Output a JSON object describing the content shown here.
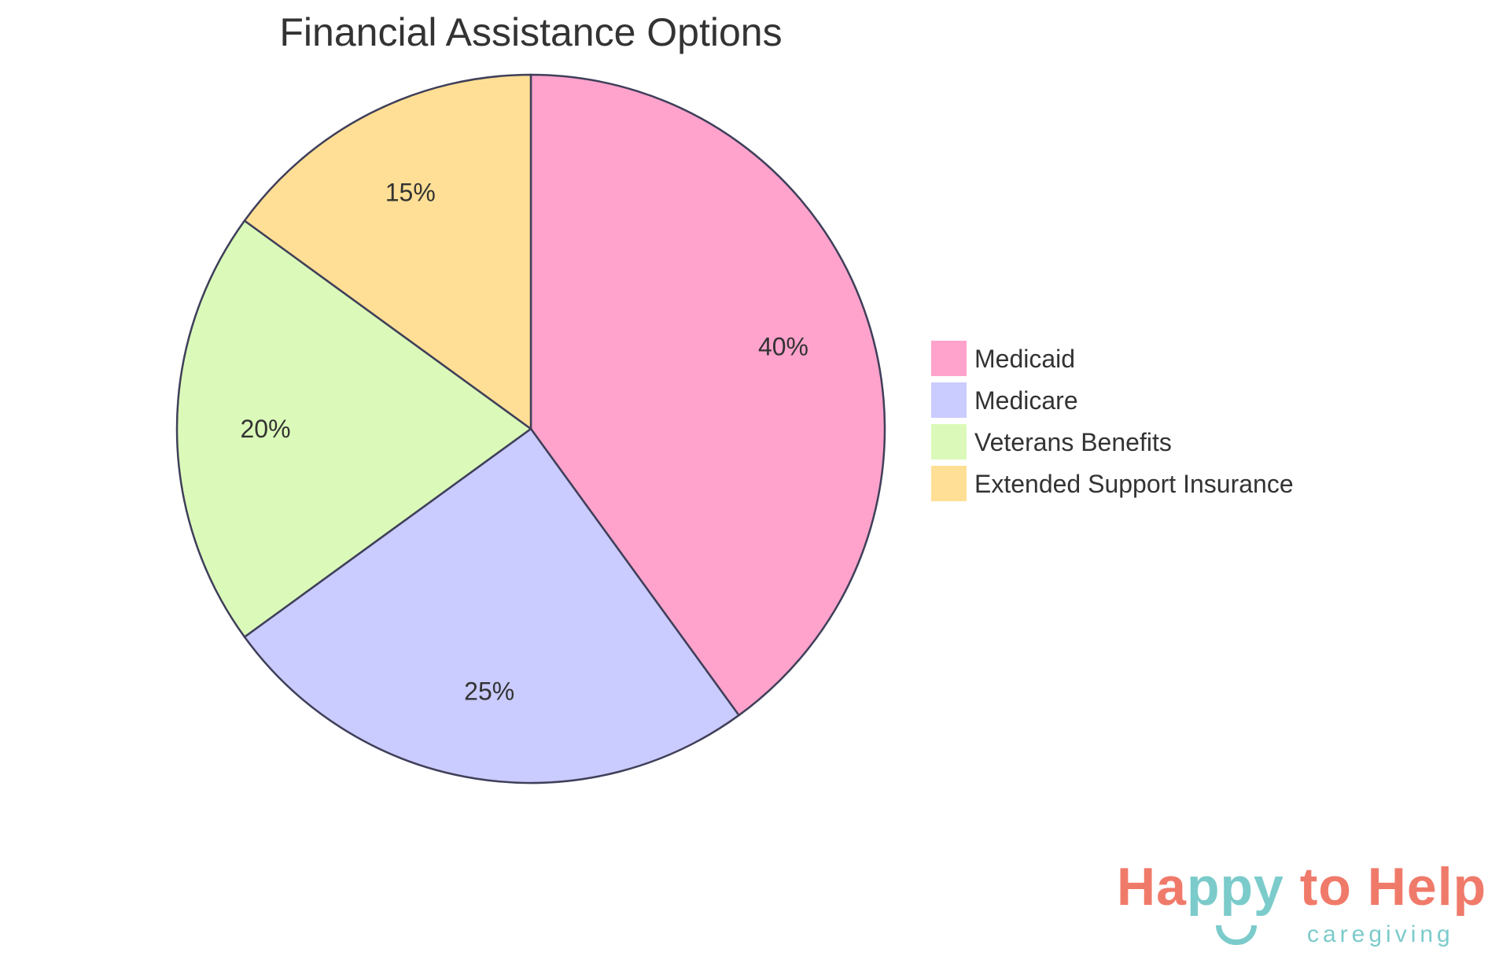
{
  "chart_data": {
    "type": "pie",
    "title": "Financial Assistance Options",
    "categories": [
      "Medicaid",
      "Medicare",
      "Veterans Benefits",
      "Extended Support Insurance"
    ],
    "values": [
      40,
      25,
      20,
      15
    ],
    "labels": [
      "40%",
      "25%",
      "20%",
      "15%"
    ],
    "colors": [
      "#FFA3CC",
      "#CACBFE",
      "#DBFAB9",
      "#FFDF95"
    ],
    "stroke_color": "#3F3F5A",
    "legend_placement": "right"
  },
  "logo": {
    "text_part1": "Ha",
    "text_part2": "ppy",
    "text_part3": " to Help",
    "subtitle": "caregiving",
    "brand_colors": [
      "#F07A6A",
      "#7CCBCB"
    ]
  }
}
